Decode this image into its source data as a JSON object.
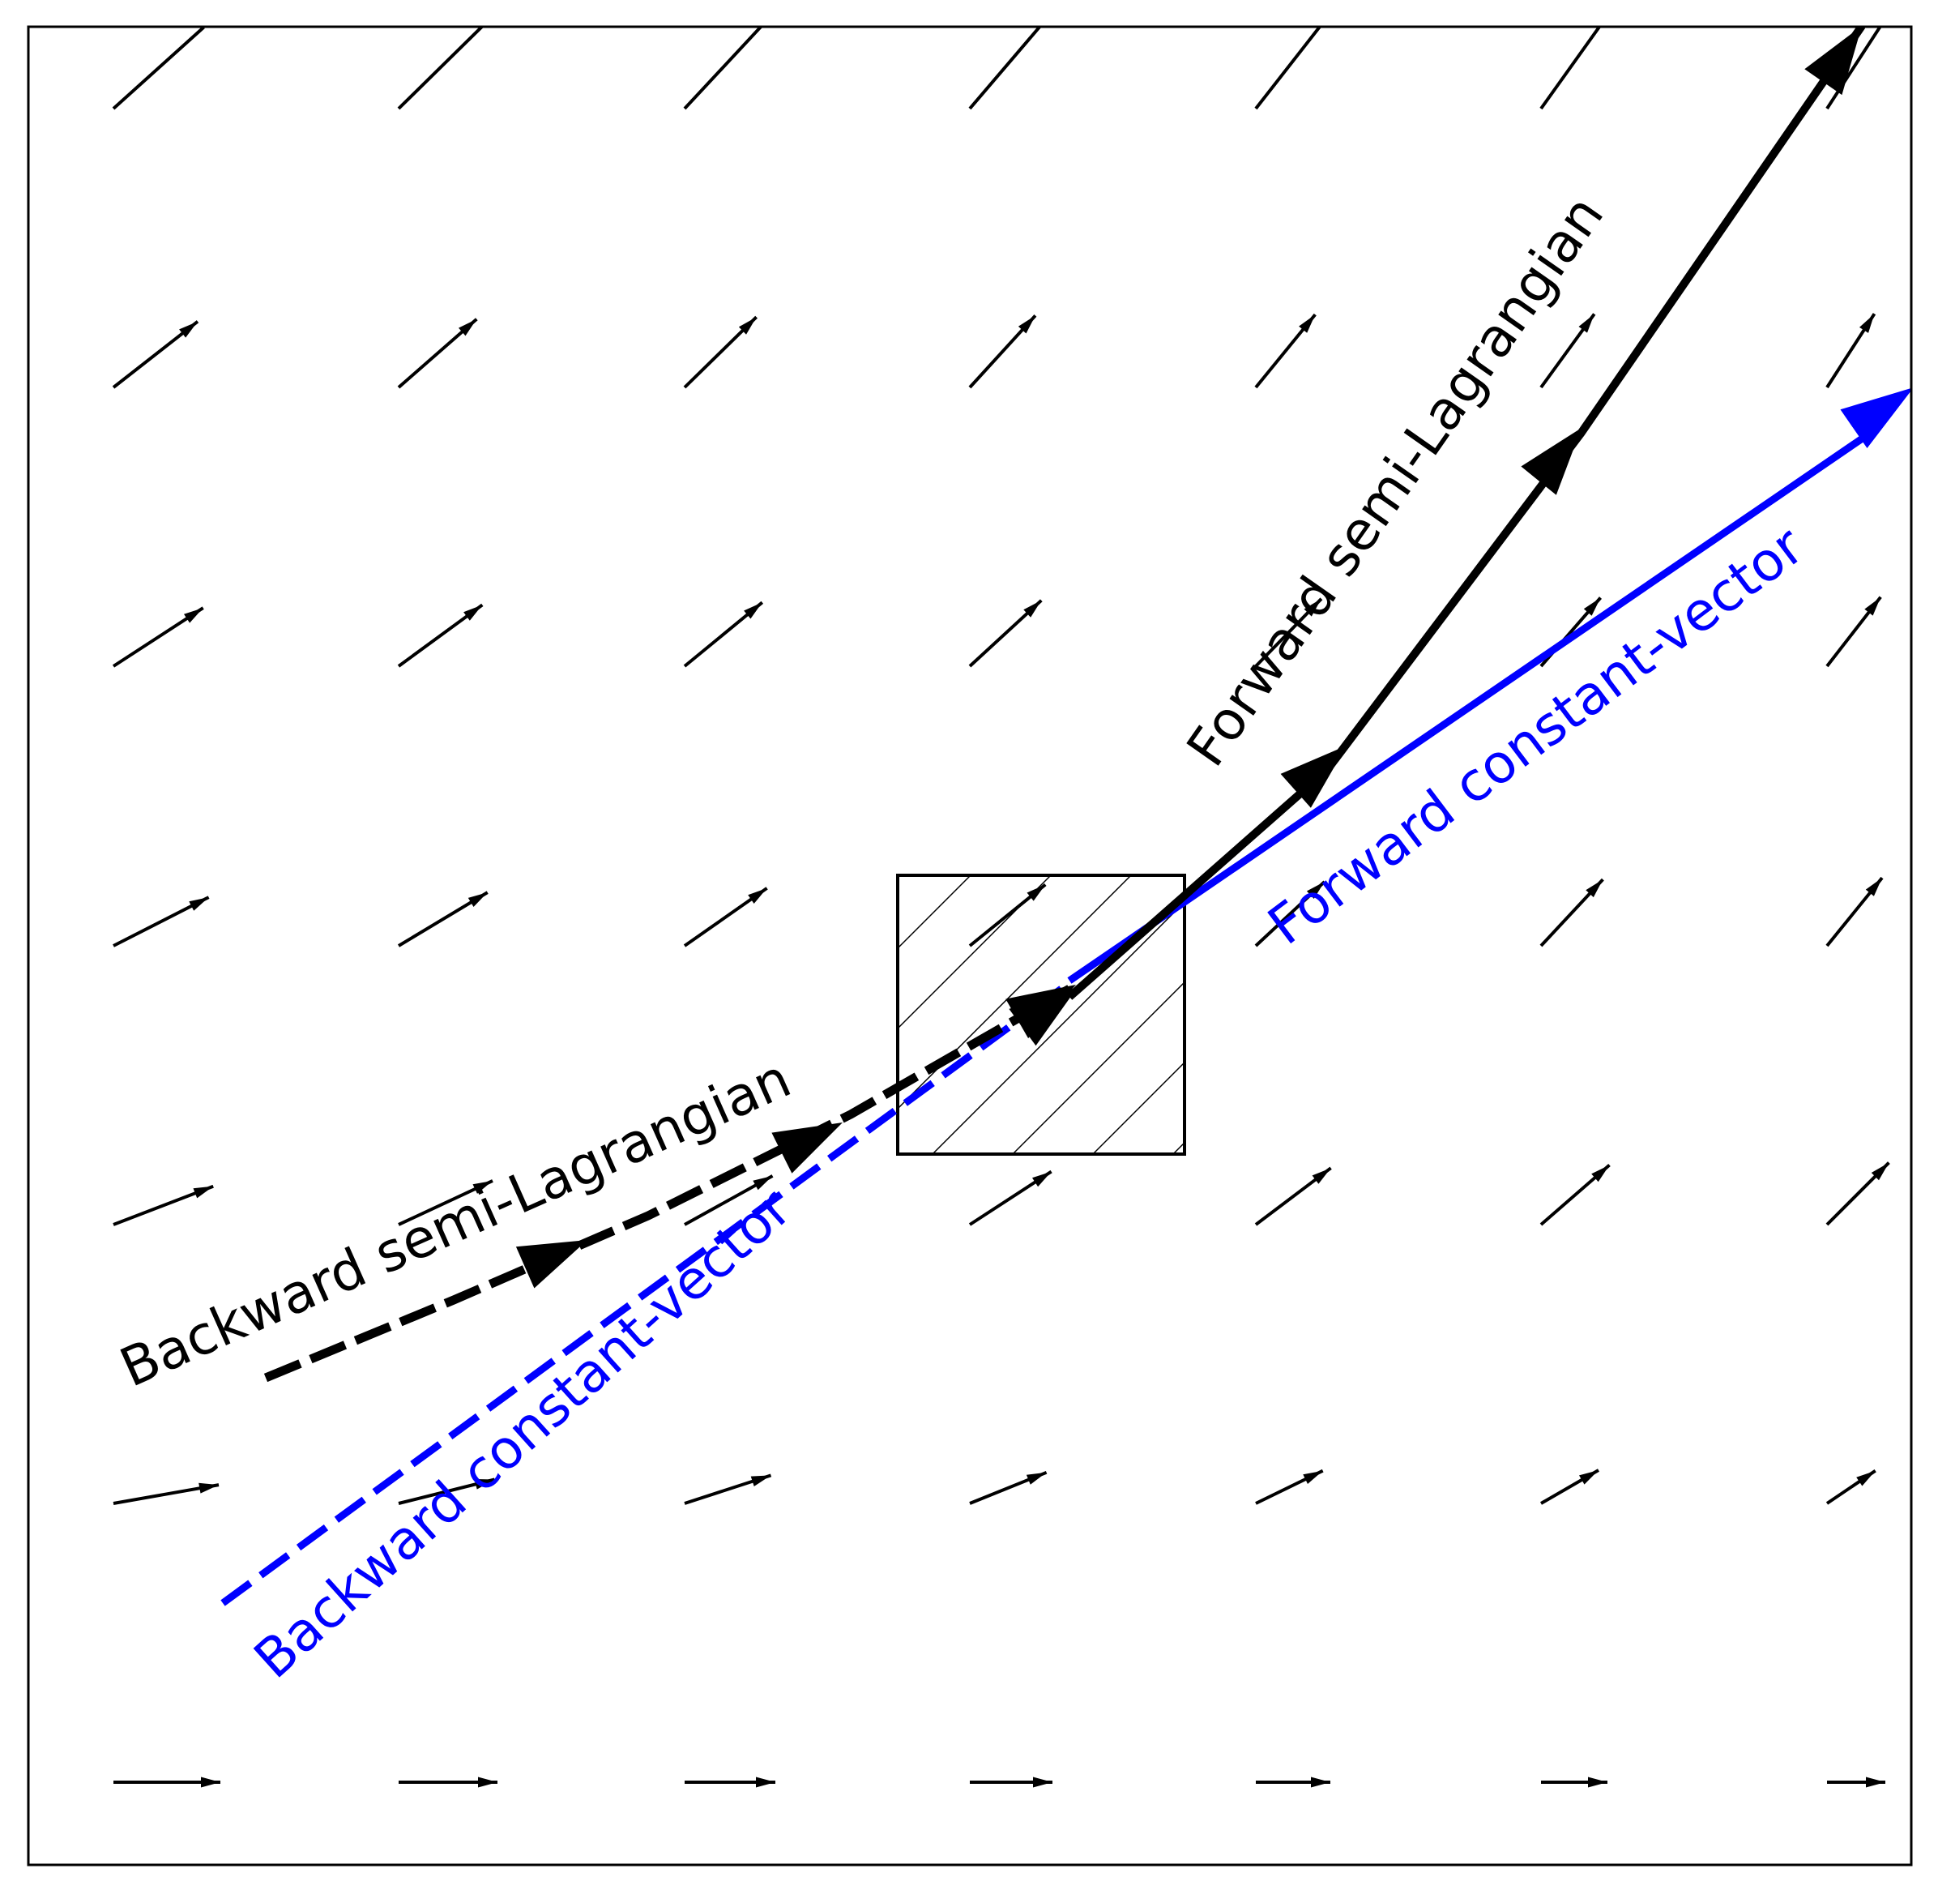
{
  "labels": {
    "forward_semi_lagrangian": "Forward semi-Lagrangian",
    "forward_constant_vector": "Forward constant-vector",
    "backward_semi_lagrangian": "Backward semi-Lagrangian",
    "backward_constant_vector": "Backward constant-vector"
  },
  "colors": {
    "semi_lagrangian": "#000000",
    "constant_vector": "#0000ff",
    "field": "#000000",
    "frame": "#000000"
  },
  "icons": {
    "velocity_field": "arrow-icon",
    "source_cell": "hatched-square"
  }
}
